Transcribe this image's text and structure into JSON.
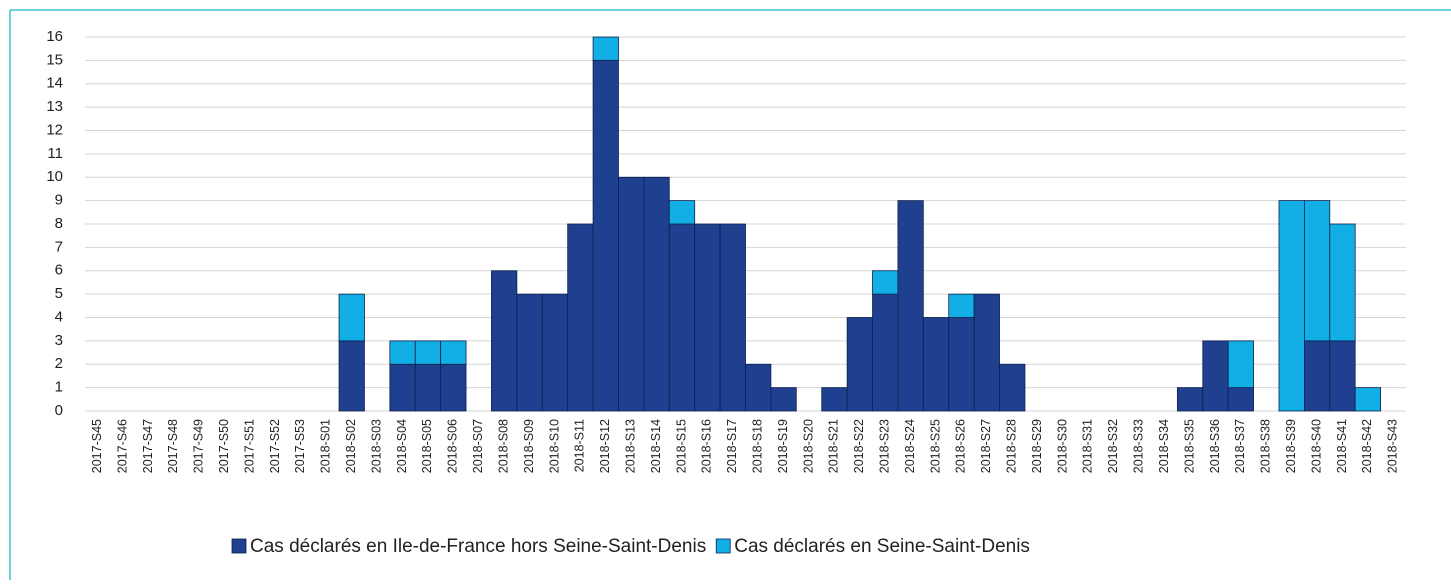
{
  "chart_data": {
    "type": "stacked-bar",
    "categories": [
      "2017-S45",
      "2017-S46",
      "2017-S47",
      "2017-S48",
      "2017-S49",
      "2017-S50",
      "2017-S51",
      "2017-S52",
      "2017-S53",
      "2018-S01",
      "2018-S02",
      "2018-S03",
      "2018-S04",
      "2018-S05",
      "2018-S06",
      "2018-S07",
      "2018-S08",
      "2018-S09",
      "2018-S10",
      "2018-S11",
      "2018-S12",
      "2018-S13",
      "2018-S14",
      "2018-S15",
      "2018-S16",
      "2018-S17",
      "2018-S18",
      "2018-S19",
      "2018-S20",
      "2018-S21",
      "2018-S22",
      "2018-S23",
      "2018-S24",
      "2018-S25",
      "2018-S26",
      "2018-S27",
      "2018-S28",
      "2018-S29",
      "2018-S30",
      "2018-S31",
      "2018-S32",
      "2018-S33",
      "2018-S34",
      "2018-S35",
      "2018-S36",
      "2018-S37",
      "2018-S38",
      "2018-S39",
      "2018-S40",
      "2018-S41",
      "2018-S42",
      "2018-S43"
    ],
    "series": [
      {
        "name": "Cas déclarés en Ile-de-France hors Seine-Saint-Denis",
        "color": "#1f3f8f",
        "values": [
          0,
          0,
          0,
          0,
          0,
          0,
          0,
          0,
          0,
          0,
          3,
          0,
          2,
          2,
          2,
          0,
          6,
          5,
          5,
          8,
          15,
          10,
          10,
          8,
          8,
          8,
          2,
          1,
          0,
          1,
          4,
          5,
          9,
          4,
          4,
          5,
          2,
          0,
          0,
          0,
          0,
          0,
          0,
          1,
          3,
          1,
          0,
          0,
          3,
          3,
          0,
          0
        ]
      },
      {
        "name": "Cas déclarés en Seine-Saint-Denis",
        "color": "#12aee6",
        "values": [
          0,
          0,
          0,
          0,
          0,
          0,
          0,
          0,
          0,
          0,
          2,
          0,
          1,
          1,
          1,
          0,
          0,
          0,
          0,
          0,
          1,
          0,
          0,
          1,
          0,
          0,
          0,
          0,
          0,
          0,
          0,
          1,
          0,
          0,
          1,
          0,
          0,
          0,
          0,
          0,
          0,
          0,
          0,
          0,
          0,
          2,
          0,
          9,
          6,
          5,
          1,
          0
        ]
      }
    ],
    "ylim": [
      0,
      16
    ],
    "yticks": [
      0,
      1,
      2,
      3,
      4,
      5,
      6,
      7,
      8,
      9,
      10,
      11,
      12,
      13,
      14,
      15,
      16
    ],
    "grid": true
  }
}
